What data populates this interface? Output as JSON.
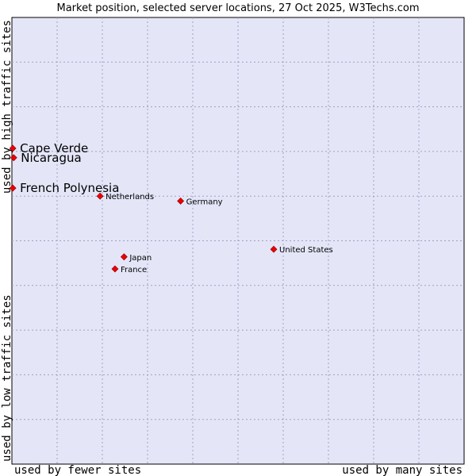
{
  "chart_data": {
    "type": "scatter",
    "title": "Market position, selected server locations, 27 Oct 2025, W3Techs.com",
    "xlabel_left": "used by fewer sites",
    "xlabel_right": "used by many sites",
    "ylabel_bottom": "used by low traffic sites",
    "ylabel_top": "used by high traffic sites",
    "xlim": [
      0,
      100
    ],
    "ylim": [
      0,
      100
    ],
    "grid": true,
    "colors": {
      "background": "#e4e6f8",
      "border": "#000000",
      "grid": "#a0a0c0",
      "marker": "#ee0000"
    },
    "points": [
      {
        "label": "Cape Verde",
        "x": 0.2,
        "y": 70.7,
        "emphasis": true
      },
      {
        "label": "Nicaragua",
        "x": 0.4,
        "y": 68.6,
        "emphasis": true
      },
      {
        "label": "French Polynesia",
        "x": 0.2,
        "y": 61.8,
        "emphasis": true
      },
      {
        "label": "Netherlands",
        "x": 19.5,
        "y": 60.0,
        "emphasis": false
      },
      {
        "label": "Germany",
        "x": 37.3,
        "y": 58.9,
        "emphasis": false
      },
      {
        "label": "United States",
        "x": 57.9,
        "y": 48.1,
        "emphasis": false
      },
      {
        "label": "Japan",
        "x": 24.8,
        "y": 46.4,
        "emphasis": false
      },
      {
        "label": "France",
        "x": 22.8,
        "y": 43.7,
        "emphasis": false
      }
    ]
  }
}
